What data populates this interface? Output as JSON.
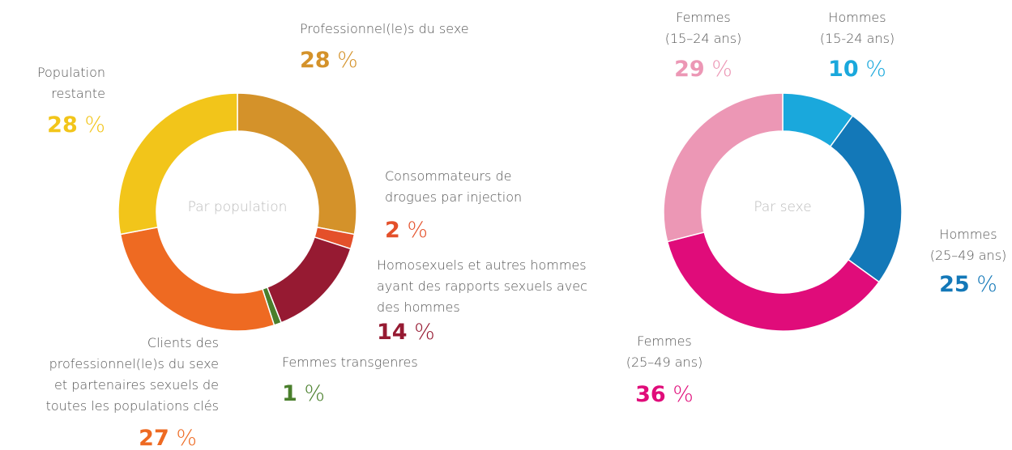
{
  "chart_data": [
    {
      "type": "pie",
      "donut": true,
      "center_label": "Par population",
      "categories": [
        "Professionnel(le)s du sexe",
        "Consommateurs de\ndrogues par injection",
        "Homosexuels et autres hommes\nayant des rapports sexuels avec\ndes hommes",
        "Femmes transgenres",
        "Clients des\nprofessionnel(le)s du sexe\net partenaires sexuels de\ntoutes les populations clés",
        "Population\nrestante"
      ],
      "values": [
        28,
        2,
        14,
        1,
        27,
        28
      ],
      "value_labels": [
        "28 %",
        "2 %",
        "14 %",
        "1 %",
        "27 %",
        "28 %"
      ],
      "colors": [
        "#d4922a",
        "#e4502a",
        "#961a32",
        "#4a7f2c",
        "#ee6a22",
        "#f2c51a"
      ]
    },
    {
      "type": "pie",
      "donut": true,
      "center_label": "Par sexe",
      "categories": [
        "Hommes\n(15-24 ans)",
        "Hommes\n(25–49 ans)",
        "Femmes\n(25–49 ans)",
        "Femmes\n(15–24 ans)"
      ],
      "values": [
        10,
        25,
        36,
        29
      ],
      "value_labels": [
        "10 %",
        "25 %",
        "36 %",
        "29 %"
      ],
      "colors": [
        "#1aa8dc",
        "#1378b8",
        "#e00c7a",
        "#ec97b5"
      ]
    }
  ]
}
